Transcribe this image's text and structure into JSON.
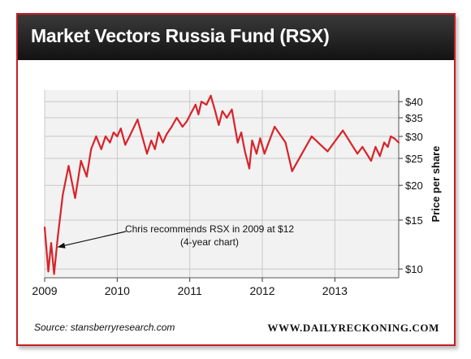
{
  "header": {
    "title": "Market Vectors Russia Fund (RSX)"
  },
  "footer": {
    "source": "Source: stansberryresearch.com",
    "brand": "WWW.DAILYRECKONING.COM"
  },
  "colors": {
    "line": "#d8232a",
    "frame": "#c81d25",
    "title_bg": "#1f1f1f",
    "plot_bg": "#f2f2f2",
    "grid": "#c8c8c8"
  },
  "chart_data": {
    "type": "line",
    "title": "",
    "xlabel": "",
    "ylabel": "Price per share",
    "y_scale": "log",
    "ylim": [
      9.3,
      44
    ],
    "xlim": [
      2009.0,
      2013.88
    ],
    "x_ticks": [
      2009,
      2010,
      2011,
      2012,
      2013
    ],
    "x_tick_labels": [
      "2009",
      "2010",
      "2011",
      "2012",
      "2013"
    ],
    "y_ticks": [
      10,
      15,
      20,
      25,
      30,
      35,
      40
    ],
    "y_tick_labels": [
      "$10",
      "$15",
      "$20",
      "$25",
      "$30",
      "$35",
      "$40"
    ],
    "grid": true,
    "annotation": {
      "line1": "Chris recommends RSX in 2009 at $12",
      "line2": "(4-year chart)",
      "arrow_to": [
        2009.12,
        12
      ]
    },
    "series": [
      {
        "x": [
          2009.0,
          2009.05,
          2009.09,
          2009.13,
          2009.18,
          2009.25,
          2009.33,
          2009.42,
          2009.5,
          2009.58,
          2009.64,
          2009.71,
          2009.78,
          2009.84,
          2009.9,
          2009.95,
          2010.0,
          2010.05,
          2010.11,
          2010.17,
          2010.28,
          2010.41,
          2010.47,
          2010.52,
          2010.57,
          2010.63,
          2010.68,
          2010.75,
          2010.82,
          2010.9,
          2010.96,
          2011.02,
          2011.08,
          2011.12,
          2011.16,
          2011.23,
          2011.29,
          2011.35,
          2011.4,
          2011.45,
          2011.51,
          2011.58,
          2011.66,
          2011.71,
          2011.76,
          2011.82,
          2011.86,
          2011.92,
          2011.97,
          2012.03,
          2012.17,
          2012.32,
          2012.41,
          2012.68,
          2012.9,
          2013.11,
          2013.31,
          2013.38,
          2013.5,
          2013.56,
          2013.62,
          2013.68,
          2013.73,
          2013.77,
          2013.82,
          2013.88
        ],
        "y": [
          14.1,
          9.8,
          12.4,
          9.6,
          13.0,
          18.5,
          23.5,
          18.0,
          24.5,
          21.5,
          27.0,
          30.0,
          27.0,
          30.0,
          28.5,
          31.0,
          30.0,
          32.0,
          28.0,
          30.0,
          34.5,
          26.0,
          29.0,
          27.0,
          31.0,
          28.5,
          30.5,
          32.5,
          35.0,
          32.5,
          34.0,
          36.5,
          39.0,
          36.0,
          40.0,
          39.0,
          42.0,
          37.0,
          33.0,
          37.0,
          35.0,
          37.5,
          28.5,
          31.0,
          26.5,
          23.0,
          29.0,
          26.0,
          29.5,
          26.0,
          32.5,
          28.5,
          22.5,
          30.0,
          26.5,
          31.5,
          26.0,
          27.5,
          24.5,
          27.5,
          25.5,
          28.5,
          27.5,
          30.0,
          29.5,
          28.5
        ]
      }
    ]
  }
}
